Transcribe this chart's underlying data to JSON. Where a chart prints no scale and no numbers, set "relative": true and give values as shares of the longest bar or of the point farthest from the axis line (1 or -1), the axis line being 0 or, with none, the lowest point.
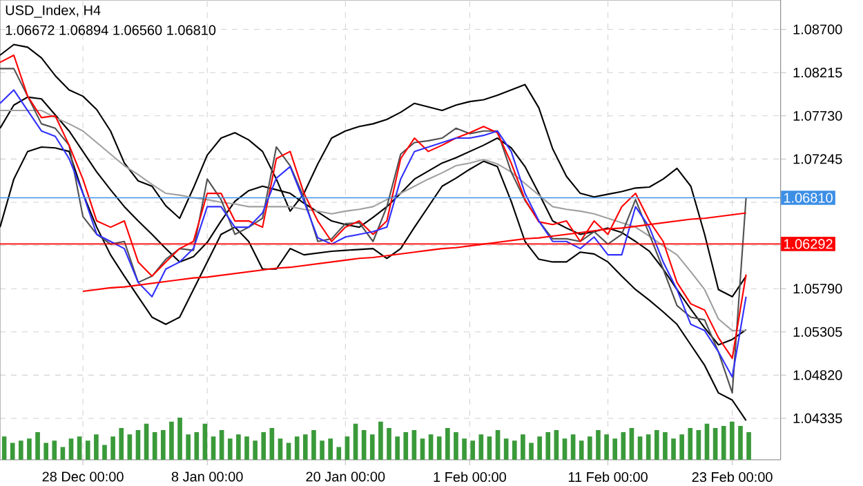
{
  "chart_data": [
    {
      "type": "line",
      "title": "USD_Index, H4",
      "annotations": [
        "1.06672 1.06894 1.06560 1.06810"
      ],
      "categories": [
        null,
        null,
        null,
        null,
        null,
        null,
        "28 Dec 00:00",
        null,
        null,
        null,
        null,
        null,
        null,
        null,
        null,
        "8 Jan 00:00",
        null,
        null,
        null,
        null,
        null,
        null,
        null,
        null,
        null,
        "20 Jan 00:00",
        null,
        null,
        null,
        null,
        null,
        null,
        null,
        null,
        "1 Feb 00:00",
        null,
        null,
        null,
        null,
        null,
        null,
        null,
        null,
        null,
        "11 Feb 00:00",
        null,
        null,
        null,
        null,
        null,
        null,
        null,
        null,
        "23 Feb 00:00",
        null
      ],
      "ylim": [
        1.0387,
        1.0903
      ],
      "grid": true,
      "yticks": [
        {
          "value": 1.087,
          "label": "1.08700"
        },
        1.08215,
        {
          "value": 1.0773,
          "label": "1.07730"
        },
        1.07245,
        {
          "value": 1.0676,
          "label": null
        },
        {
          "value": 1.06275,
          "label": null
        },
        {
          "value": 1.0579,
          "label": "1.05790"
        },
        1.05305,
        {
          "value": 1.0482,
          "label": "1.04820"
        },
        1.04335
      ],
      "ref_lines": [
        {
          "axis": "y",
          "value": 1.0681,
          "label": "1.06810",
          "color": "#3d8fe6"
        },
        {
          "axis": "y",
          "value": 1.06292,
          "label": "1.06292",
          "color": "#ff0000"
        }
      ],
      "series": [
        {
          "color": "#000000",
          "values": [
            1.0841,
            1.0853,
            1.085,
            1.0838,
            1.0818,
            1.0802,
            1.0795,
            1.078,
            1.0756,
            1.072,
            1.07,
            1.0694,
            1.0672,
            1.0658,
            1.0692,
            1.0729,
            1.0748,
            1.0754,
            1.0746,
            1.0733,
            1.0702,
            1.0666,
            1.0686,
            1.0719,
            1.0748,
            1.0756,
            1.0761,
            1.0764,
            1.0769,
            1.0777,
            1.0787,
            1.0783,
            1.0779,
            1.0785,
            1.0789,
            1.0791,
            1.0796,
            1.0802,
            1.0808,
            1.0782,
            1.0736,
            1.0705,
            1.0686,
            1.0682,
            1.0685,
            1.0688,
            1.0692,
            1.0693,
            1.0702,
            1.0714,
            1.0694,
            1.064,
            1.0578,
            1.057,
            1.0593
          ]
        },
        {
          "color": "#000000",
          "values": [
            1.0648,
            1.0702,
            1.0733,
            1.0738,
            1.0737,
            1.0733,
            1.0686,
            1.0648,
            1.0617,
            1.0593,
            1.057,
            1.0547,
            1.0539,
            1.0547,
            1.0578,
            1.0609,
            1.064,
            1.0648,
            1.0632,
            1.0601,
            1.0601,
            1.0624,
            1.0617,
            1.0619,
            1.0621,
            1.0622,
            1.0623,
            1.0624,
            1.0613,
            1.0624,
            1.0648,
            1.0671,
            1.0694,
            1.0703,
            1.0713,
            1.0722,
            1.0716,
            1.0677,
            1.0632,
            1.0612,
            1.0609,
            1.0609,
            1.062,
            1.0618,
            1.0609,
            1.0593,
            1.0578,
            1.0566,
            1.0553,
            1.0539,
            1.0516,
            1.0493,
            1.0462,
            1.0454,
            1.0431
          ]
        },
        {
          "color": "#000000",
          "values": [
            1.0759,
            1.0785,
            1.0794,
            1.0792,
            1.0774,
            1.0756,
            1.0733,
            1.071,
            1.069,
            1.0671,
            1.0655,
            1.064,
            1.0624,
            1.0609,
            1.0615,
            1.0631,
            1.0655,
            1.0677,
            1.0689,
            1.0694,
            1.069,
            1.0686,
            1.0675,
            1.0665,
            1.0655,
            1.0651,
            1.0648,
            1.0659,
            1.0671,
            1.0686,
            1.0702,
            1.0711,
            1.072,
            1.0726,
            1.0733,
            1.074,
            1.0748,
            1.0737,
            1.0716,
            1.0686,
            1.0655,
            1.0647,
            1.064,
            1.0643,
            1.0647,
            1.0642,
            1.0632,
            1.0621,
            1.0601,
            1.0578,
            1.0556,
            1.0535,
            1.0516,
            1.0522,
            1.0533
          ]
        },
        {
          "color": "#a0a0a0",
          "values": [
            1.0779,
            1.0779,
            1.0779,
            1.0779,
            1.0771,
            1.0764,
            1.0756,
            1.0743,
            1.073,
            1.0717,
            1.0707,
            1.0696,
            1.0686,
            1.0684,
            1.0681,
            1.0679,
            1.0676,
            1.0674,
            1.0671,
            1.0671,
            1.0671,
            1.0671,
            1.0668,
            1.0666,
            1.0663,
            1.0666,
            1.0668,
            1.0671,
            1.0679,
            1.0686,
            1.0694,
            1.0702,
            1.0709,
            1.0717,
            1.072,
            1.0724,
            1.0719,
            1.071,
            1.0697,
            1.0684,
            1.0671,
            1.0668,
            1.0666,
            1.0663,
            1.0658,
            1.0653,
            1.0648,
            1.0638,
            1.0627,
            1.0617,
            1.0598,
            1.0578,
            1.0545,
            1.0532,
            1.0532
          ]
        },
        {
          "color": "#505050",
          "values": [
            1.0826,
            1.0826,
            1.0795,
            1.0764,
            1.0759,
            1.074,
            1.066,
            1.064,
            1.0629,
            1.0632,
            1.0586,
            1.0593,
            1.0612,
            1.0624,
            1.0622,
            1.0702,
            1.0679,
            1.064,
            1.0648,
            1.0658,
            1.0738,
            1.0717,
            1.0681,
            1.0632,
            1.0635,
            1.0652,
            1.0653,
            1.0632,
            1.0671,
            1.073,
            1.0743,
            1.0745,
            1.0748,
            1.0759,
            1.0753,
            1.0756,
            1.0756,
            1.071,
            1.0678,
            1.0655,
            1.0635,
            1.0635,
            1.0632,
            1.0643,
            1.0629,
            1.064,
            1.0679,
            1.064,
            1.0601,
            1.056,
            1.0547,
            1.0544,
            1.0508,
            1.0462,
            1.0681
          ]
        },
        {
          "color": "#ff0000",
          "values": [
            1.0833,
            1.0841,
            1.0795,
            1.0771,
            1.0773,
            1.074,
            1.0702,
            1.0655,
            1.0648,
            1.0655,
            1.0609,
            1.0593,
            1.0609,
            1.0624,
            1.0632,
            1.0686,
            1.0686,
            1.0655,
            1.0655,
            1.0648,
            1.0725,
            1.0733,
            1.0686,
            1.0655,
            1.0632,
            1.0648,
            1.0655,
            1.064,
            1.0655,
            1.0725,
            1.0748,
            1.0733,
            1.074,
            1.0748,
            1.0754,
            1.0761,
            1.0754,
            1.072,
            1.0679,
            1.0654,
            1.0651,
            1.0655,
            1.0632,
            1.0655,
            1.064,
            1.0671,
            1.0686,
            1.0655,
            1.0632,
            1.0586,
            1.0562,
            1.0555,
            1.0524,
            1.0501,
            1.0595
          ]
        },
        {
          "color": "#3030ff",
          "values": [
            1.0787,
            1.0802,
            1.0779,
            1.0756,
            1.075,
            1.0725,
            1.0686,
            1.064,
            1.0632,
            1.0624,
            1.0586,
            1.057,
            1.0601,
            1.0609,
            1.0624,
            1.0671,
            1.0671,
            1.0648,
            1.0648,
            1.0664,
            1.0703,
            1.0716,
            1.0677,
            1.0636,
            1.0629,
            1.0637,
            1.064,
            1.0643,
            1.0648,
            1.0702,
            1.0733,
            1.0738,
            1.0743,
            1.0748,
            1.0748,
            1.0751,
            1.0756,
            1.0733,
            1.0686,
            1.0655,
            1.0632,
            1.0632,
            1.0624,
            1.0637,
            1.0617,
            1.0617,
            1.0671,
            1.0648,
            1.0609,
            1.0578,
            1.0539,
            1.0532,
            1.0508,
            1.048,
            1.057
          ]
        },
        {
          "color": "#ff0000",
          "values": [
            null,
            null,
            null,
            null,
            null,
            null,
            1.0576,
            1.0578,
            1.058,
            1.0581,
            1.0583,
            1.0585,
            1.0587,
            1.0589,
            1.0591,
            1.0592,
            1.0594,
            1.0596,
            1.0598,
            1.06,
            1.0602,
            1.0603,
            1.0605,
            1.0607,
            1.0609,
            1.0611,
            1.0613,
            1.0614,
            1.0616,
            1.0618,
            1.062,
            1.0622,
            1.0624,
            1.0625,
            1.0627,
            1.0629,
            1.0631,
            1.0633,
            1.0635,
            1.0636,
            1.0638,
            1.064,
            1.0642,
            1.0644,
            1.0646,
            1.0647,
            1.0649,
            1.0651,
            1.0653,
            1.0655,
            1.0657,
            1.0658,
            1.066,
            1.0662,
            1.0664
          ]
        }
      ]
    },
    {
      "type": "bar",
      "relative": true,
      "color": "#3a9a3a",
      "categories": [
        null,
        null,
        null,
        null,
        null,
        null,
        null,
        null,
        null,
        null,
        null,
        null,
        null,
        null,
        null,
        null,
        null,
        null,
        null,
        null,
        null,
        null,
        null,
        null,
        null,
        null,
        null,
        null,
        null,
        null,
        null,
        null,
        null,
        null,
        null,
        null,
        null,
        null,
        null,
        null,
        null,
        null,
        null,
        null,
        null,
        null,
        null,
        null,
        null,
        null,
        null,
        null,
        null,
        null,
        null,
        null,
        null,
        null,
        null,
        null,
        null,
        null,
        null,
        null,
        null,
        null,
        null,
        null,
        null,
        null,
        null,
        null,
        null,
        null,
        null,
        null,
        null,
        null,
        null,
        null,
        null,
        null,
        null,
        null,
        null,
        null,
        null,
        null,
        null,
        null
      ],
      "values": [
        0.55,
        0.4,
        0.45,
        0.5,
        0.65,
        0.4,
        0.45,
        0.3,
        0.5,
        0.55,
        0.45,
        0.6,
        0.35,
        0.55,
        0.75,
        0.6,
        0.7,
        0.85,
        0.65,
        0.7,
        0.9,
        1.0,
        0.6,
        0.65,
        0.85,
        0.55,
        0.7,
        0.5,
        0.6,
        0.55,
        0.45,
        0.65,
        0.75,
        0.5,
        0.4,
        0.55,
        0.6,
        0.7,
        0.45,
        0.5,
        0.3,
        0.55,
        0.85,
        0.7,
        0.6,
        0.9,
        0.75,
        0.55,
        0.65,
        0.7,
        0.5,
        0.6,
        0.55,
        0.75,
        0.65,
        0.5,
        0.45,
        0.6,
        0.55,
        0.7,
        0.5,
        0.45,
        0.6,
        0.4,
        0.55,
        0.65,
        0.7,
        0.5,
        0.6,
        0.45,
        0.55,
        0.7,
        0.6,
        0.5,
        0.65,
        0.75,
        0.55,
        0.6,
        0.7,
        0.65,
        0.5,
        0.6,
        0.75,
        0.7,
        0.85,
        0.75,
        0.8,
        0.9,
        0.8,
        0.65
      ]
    }
  ]
}
